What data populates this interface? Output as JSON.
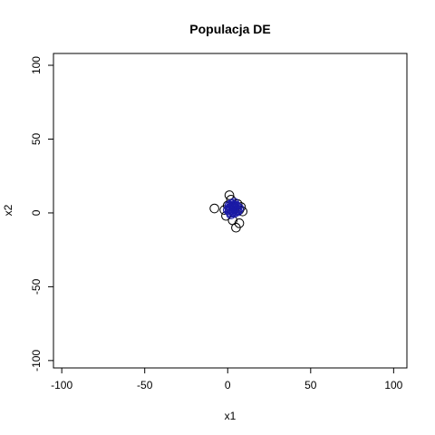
{
  "chart_data": {
    "type": "scatter",
    "title": "Populacja DE",
    "xlabel": "x1",
    "ylabel": "x2",
    "xlim": [
      -105,
      108
    ],
    "ylim": [
      -105,
      108
    ],
    "xticks": [
      -100,
      -50,
      0,
      50,
      100
    ],
    "yticks": [
      -100,
      -50,
      0,
      50,
      100
    ],
    "xtick_labels": [
      "-100",
      "-50",
      "0",
      "50",
      "100"
    ],
    "ytick_labels": [
      "-100",
      "-50",
      "0",
      "50",
      "100"
    ],
    "grid": false,
    "series": [
      {
        "marker": "open-circle",
        "color": "#000000",
        "points": [
          [
            -8,
            3
          ],
          [
            1,
            12
          ],
          [
            5,
            -10
          ],
          [
            7,
            -7
          ],
          [
            3,
            -5
          ],
          [
            -2,
            2
          ],
          [
            0,
            5
          ],
          [
            6,
            6
          ],
          [
            8,
            4
          ],
          [
            2,
            9
          ],
          [
            9,
            1
          ],
          [
            -1,
            -2
          ],
          [
            4,
            3
          ],
          [
            7,
            2
          ]
        ]
      },
      {
        "marker": "open-circle",
        "color": "#1a1aa6",
        "points": [
          [
            2,
            2
          ],
          [
            3,
            4
          ],
          [
            4,
            1
          ],
          [
            1,
            3
          ],
          [
            5,
            3
          ],
          [
            3,
            6
          ],
          [
            2,
            0
          ],
          [
            6,
            2
          ],
          [
            4,
            5
          ],
          [
            1,
            1
          ],
          [
            3,
            2
          ],
          [
            5,
            5
          ],
          [
            2,
            4
          ],
          [
            4,
            0
          ],
          [
            0,
            2
          ],
          [
            6,
            4
          ],
          [
            3,
            1
          ],
          [
            5,
            1
          ],
          [
            2,
            6
          ],
          [
            4,
            3
          ],
          [
            3,
            3
          ],
          [
            1,
            5
          ],
          [
            7,
            3
          ],
          [
            4,
            7
          ],
          [
            2,
            -1
          ],
          [
            5,
            2
          ],
          [
            3,
            5
          ],
          [
            6,
            1
          ],
          [
            1,
            2
          ],
          [
            4,
            4
          ]
        ]
      }
    ]
  }
}
